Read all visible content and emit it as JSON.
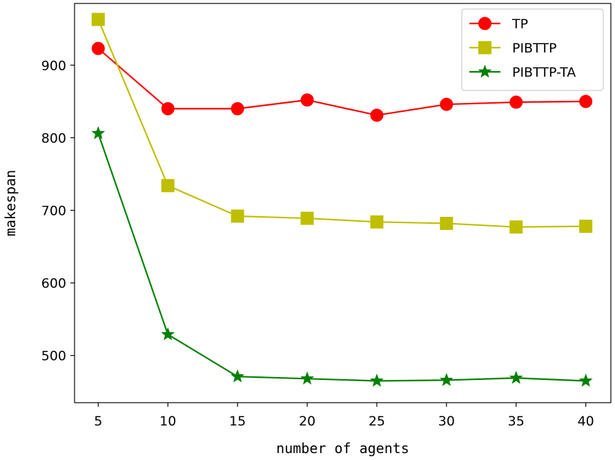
{
  "chart_data": {
    "type": "line",
    "title": "",
    "xlabel": "number of agents",
    "ylabel": "makespan",
    "categories": [
      5,
      10,
      15,
      20,
      25,
      30,
      35,
      40
    ],
    "x_ticks": [
      "5",
      "10",
      "15",
      "20",
      "25",
      "30",
      "35",
      "40"
    ],
    "y_ticks": [
      500,
      600,
      700,
      800,
      900
    ],
    "xlim": [
      3.3,
      41.8
    ],
    "ylim": [
      435,
      985
    ],
    "grid": false,
    "legend_position": "top-right",
    "series": [
      {
        "name": "TP",
        "color": "#ff0000",
        "marker": "circle",
        "values": [
          923,
          840,
          840,
          852,
          831,
          846,
          849,
          850
        ]
      },
      {
        "name": "PIBTTP",
        "color": "#bfbf00",
        "marker": "square",
        "values": [
          963,
          734,
          692,
          689,
          684,
          682,
          677,
          678
        ]
      },
      {
        "name": "PIBTTP-TA",
        "color": "#008000",
        "marker": "star",
        "values": [
          806,
          529,
          471,
          468,
          465,
          466,
          469,
          465
        ]
      }
    ]
  }
}
